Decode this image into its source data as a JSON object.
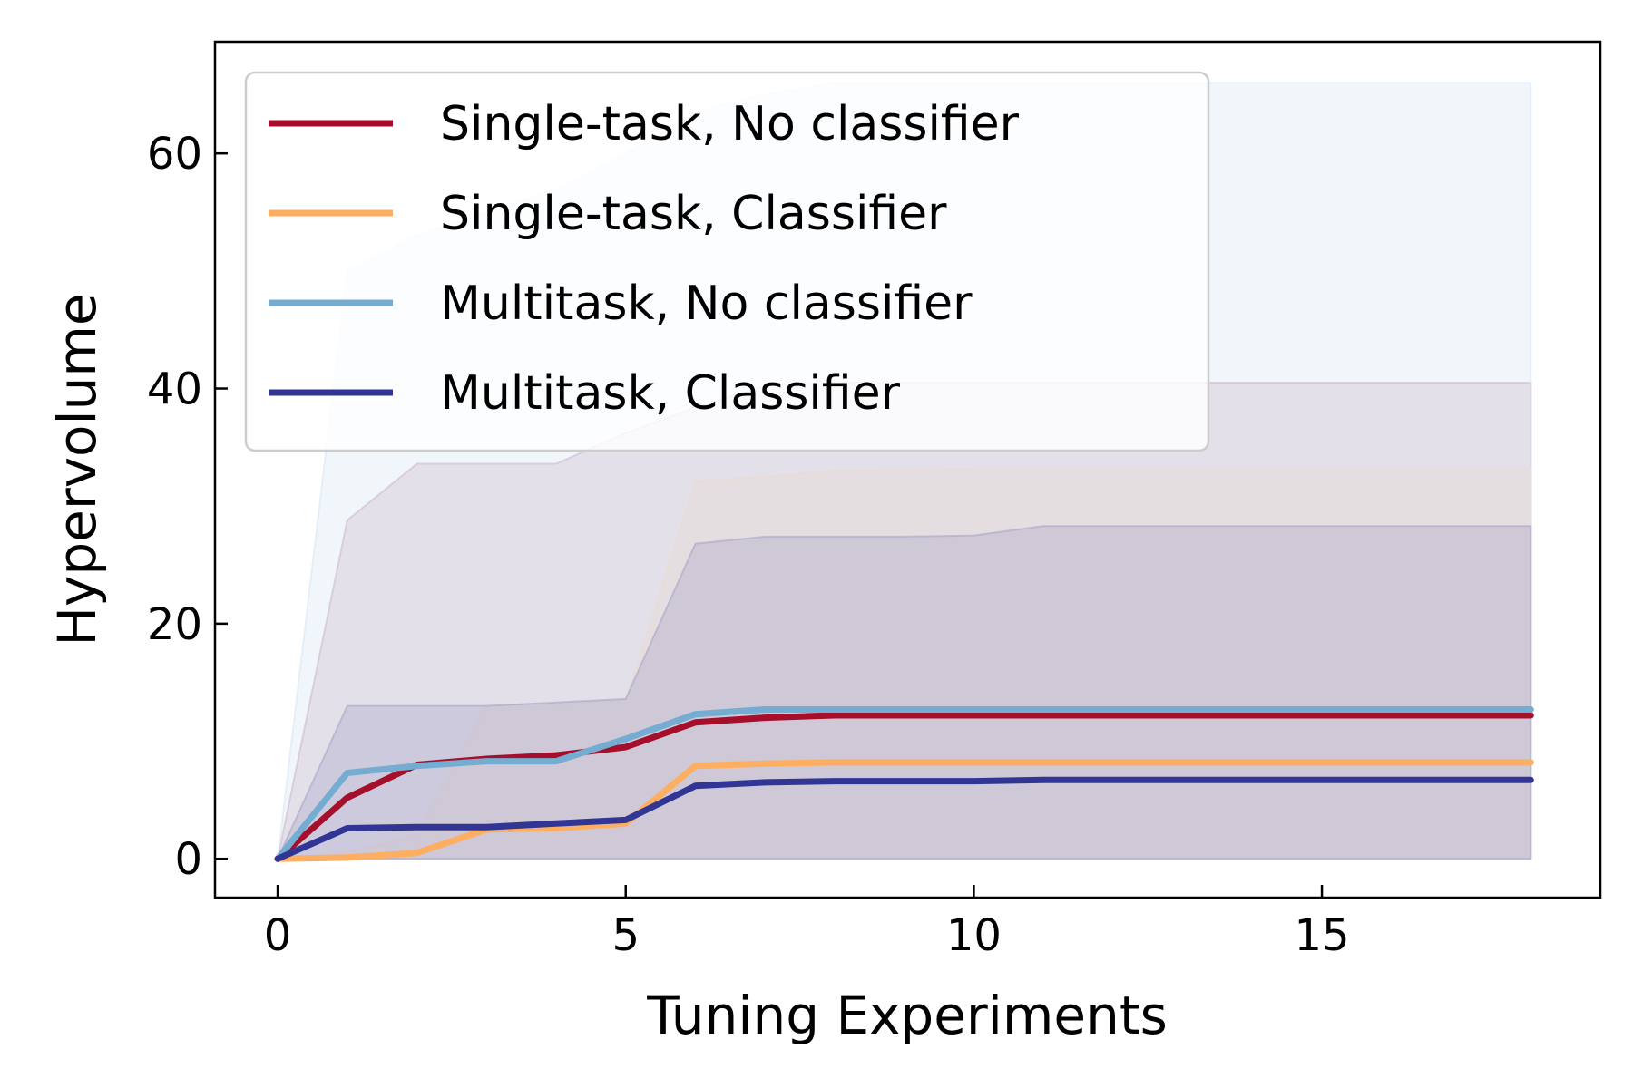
{
  "chart_data": {
    "type": "line",
    "xlabel": "Tuning Experiments",
    "ylabel": "Hypervolume",
    "xlim": [
      -0.9,
      19.0
    ],
    "ylim": [
      -3.3,
      69.5
    ],
    "xticks": [
      0,
      5,
      10,
      15
    ],
    "yticks": [
      0,
      20,
      40,
      60
    ],
    "legend_position": "top-left",
    "grid": false,
    "x": [
      0,
      1,
      2,
      3,
      4,
      5,
      6,
      7,
      8,
      9,
      10,
      11,
      12,
      13,
      14,
      15,
      16,
      17,
      18
    ],
    "series": [
      {
        "name": "Single-task, No classifier",
        "color": "#a50f2c",
        "band_color": "#c4a0b6",
        "values": [
          0,
          5.2,
          8.0,
          8.5,
          8.8,
          9.5,
          11.6,
          12.0,
          12.2,
          12.2,
          12.2,
          12.2,
          12.2,
          12.2,
          12.2,
          12.2,
          12.2,
          12.2,
          12.2
        ],
        "upper": [
          0,
          28.8,
          33.6,
          33.6,
          33.6,
          36.2,
          38.4,
          40.2,
          40.5,
          40.5,
          40.5,
          40.5,
          40.5,
          40.5,
          40.5,
          40.5,
          40.5,
          40.5,
          40.5
        ],
        "lower": [
          0,
          0,
          0,
          0,
          0,
          0,
          0,
          0,
          0,
          0,
          0,
          0,
          0,
          0,
          0,
          0,
          0,
          0,
          0
        ]
      },
      {
        "name": "Single-task, Classifier",
        "color": "#fdae61",
        "band_color": "#f3d2bd",
        "values": [
          0,
          0.1,
          0.5,
          2.5,
          2.6,
          3.0,
          7.9,
          8.1,
          8.2,
          8.2,
          8.2,
          8.2,
          8.2,
          8.2,
          8.2,
          8.2,
          8.2,
          8.2,
          8.2
        ],
        "upper": [
          0,
          0.5,
          2.0,
          13.0,
          13.2,
          13.5,
          32.1,
          32.5,
          33.0,
          33.1,
          33.2,
          33.2,
          33.2,
          33.2,
          33.2,
          33.2,
          33.2,
          33.2,
          33.2
        ],
        "lower": [
          0,
          0,
          0,
          0,
          0,
          0,
          0,
          0,
          0,
          0,
          0,
          0,
          0,
          0,
          0,
          0,
          0,
          0,
          0
        ]
      },
      {
        "name": "Multitask, No classifier",
        "color": "#74add1",
        "band_color": "#d9e8f5",
        "values": [
          0,
          7.3,
          7.9,
          8.3,
          8.3,
          10.2,
          12.3,
          12.7,
          12.7,
          12.7,
          12.7,
          12.7,
          12.7,
          12.7,
          12.7,
          12.7,
          12.7,
          12.7,
          12.7
        ],
        "upper": [
          0,
          50.0,
          53.0,
          55.0,
          57.0,
          60.0,
          63.5,
          65.0,
          66.0,
          66.0,
          66.0,
          66.0,
          66.0,
          66.0,
          66.0,
          66.0,
          66.0,
          66.0,
          66.0
        ],
        "lower": [
          0,
          0,
          0,
          0,
          0,
          0,
          0,
          0,
          0,
          0,
          0,
          0,
          0,
          0,
          0,
          0,
          0,
          0,
          0
        ]
      },
      {
        "name": "Multitask, Classifier",
        "color": "#313695",
        "band_color": "#a8a6c8",
        "values": [
          0,
          2.6,
          2.7,
          2.7,
          3.0,
          3.3,
          6.2,
          6.5,
          6.6,
          6.6,
          6.6,
          6.7,
          6.7,
          6.7,
          6.7,
          6.7,
          6.7,
          6.7,
          6.7
        ],
        "upper": [
          0,
          13.0,
          13.0,
          13.0,
          13.3,
          13.6,
          26.8,
          27.4,
          27.4,
          27.4,
          27.5,
          28.3,
          28.3,
          28.3,
          28.3,
          28.3,
          28.3,
          28.3,
          28.3
        ],
        "lower": [
          0,
          0,
          0,
          0,
          0,
          0,
          0,
          0,
          0,
          0,
          0,
          0,
          0,
          0,
          0,
          0,
          0,
          0,
          0
        ]
      }
    ]
  }
}
